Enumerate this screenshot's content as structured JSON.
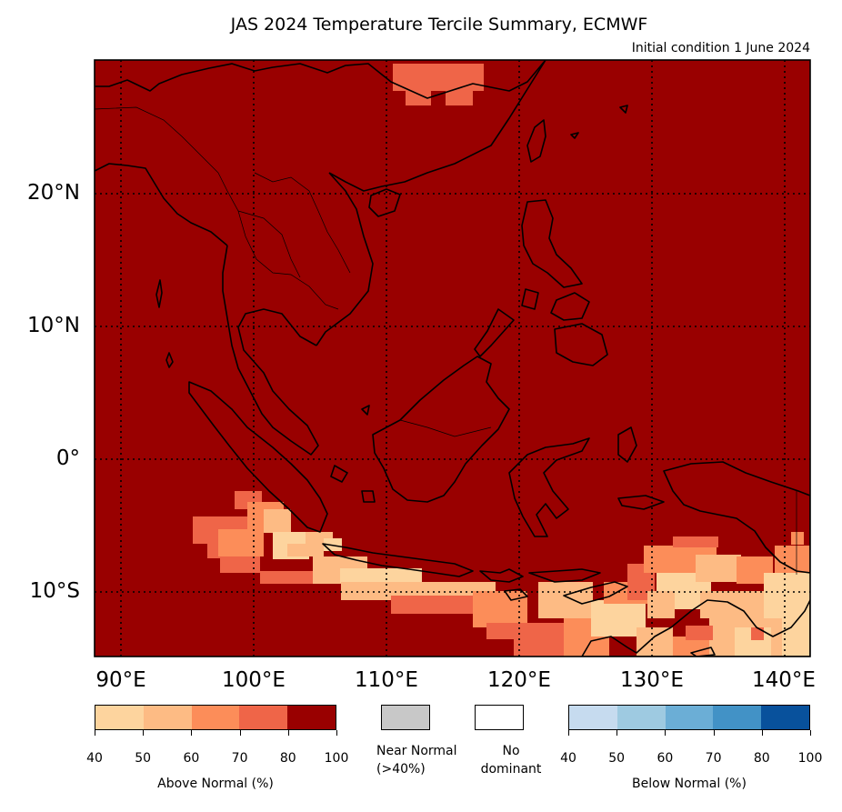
{
  "title": "JAS 2024 Temperature Tercile Summary, ECMWF",
  "subtitle": "Initial condition 1 June 2024",
  "map": {
    "lat_labels": [
      "20°N",
      "10°N",
      "0°",
      "10°S"
    ],
    "lon_labels": [
      "90°E",
      "100°E",
      "110°E",
      "120°E",
      "130°E",
      "140°E"
    ],
    "background_color": "#990000"
  },
  "legend": {
    "above_normal": {
      "label": "Above Normal (%)",
      "colors": [
        "#fdd49e",
        "#fdbb84",
        "#fc8d59",
        "#ef6548",
        "#990000"
      ],
      "ticks": [
        "40",
        "50",
        "60",
        "70",
        "80",
        "100"
      ]
    },
    "near_normal": {
      "label_line1": "Near Normal",
      "label_line2": "(>40%)",
      "color": "#c8c8c8"
    },
    "no_dominant": {
      "label_line1": "No",
      "label_line2": "dominant",
      "color": "#ffffff"
    },
    "below_normal": {
      "label": "Below Normal (%)",
      "colors": [
        "#c6dbef",
        "#9ecae1",
        "#6baed6",
        "#4292c6",
        "#08519c"
      ],
      "ticks": [
        "40",
        "50",
        "60",
        "70",
        "80",
        "100"
      ]
    }
  }
}
